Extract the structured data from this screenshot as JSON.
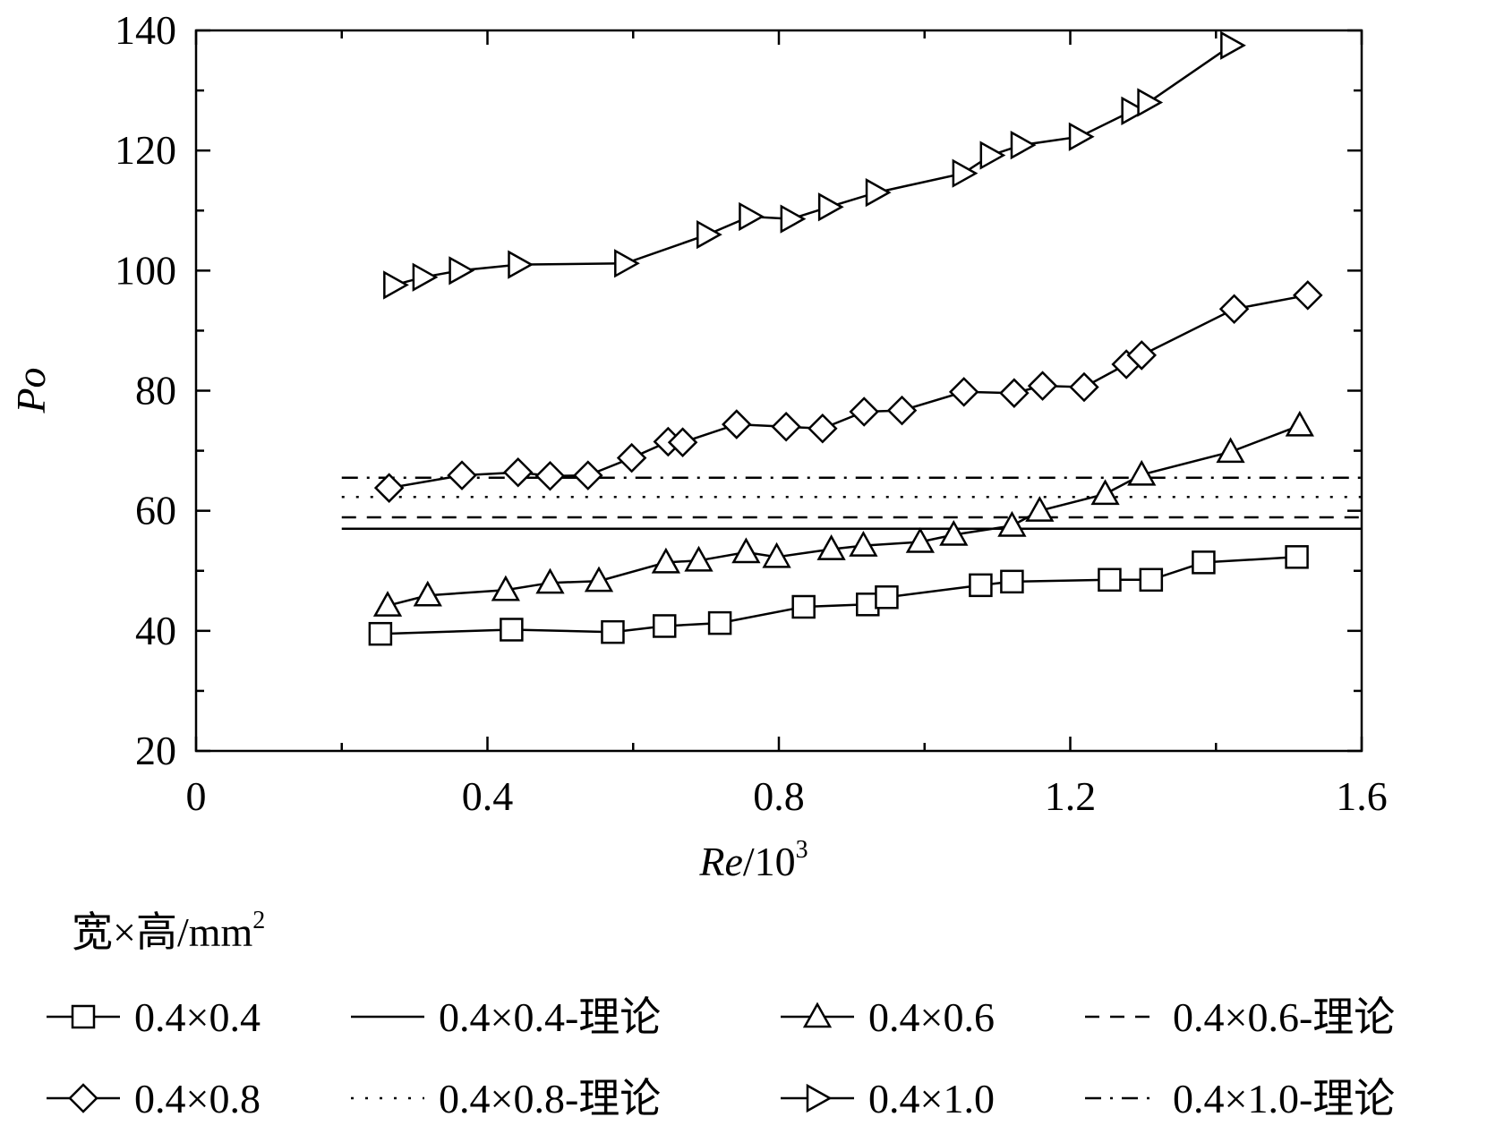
{
  "chart_data": {
    "type": "line",
    "title": "",
    "xlabel_italic": "Re",
    "xlabel_rest": "/10",
    "xlabel_sup": "3",
    "ylabel": "Po",
    "xlim": [
      0,
      1.6
    ],
    "ylim": [
      20,
      140
    ],
    "xticks": [
      0,
      0.4,
      0.8,
      1.2,
      1.6
    ],
    "xtick_labels": [
      "0",
      "0.4",
      "0.8",
      "1.2",
      "1.6"
    ],
    "yticks": [
      20,
      40,
      60,
      80,
      100,
      120,
      140
    ],
    "ytick_labels": [
      "20",
      "40",
      "60",
      "80",
      "100",
      "120",
      "140"
    ],
    "grid": false,
    "legend_title": "宽×高/mm",
    "legend_title_sup": "2",
    "legend_placement": "below",
    "series": [
      {
        "name": "0.4×0.4",
        "marker": "square",
        "x": [
          0.253,
          0.433,
          0.572,
          0.643,
          0.719,
          0.834,
          0.922,
          0.948,
          1.077,
          1.12,
          1.254,
          1.311,
          1.383,
          1.511
        ],
        "y": [
          39.5,
          40.2,
          39.8,
          40.8,
          41.3,
          44.0,
          44.4,
          45.6,
          47.6,
          48.2,
          48.5,
          48.5,
          51.4,
          52.3
        ]
      },
      {
        "name": "0.4×0.6",
        "marker": "triangle-up",
        "x": [
          0.263,
          0.318,
          0.425,
          0.486,
          0.553,
          0.645,
          0.69,
          0.755,
          0.797,
          0.872,
          0.916,
          0.994,
          1.04,
          1.12,
          1.158,
          1.248,
          1.298,
          1.42,
          1.515
        ],
        "y": [
          44.2,
          45.9,
          46.8,
          48.0,
          48.3,
          51.4,
          51.7,
          53.1,
          52.3,
          53.6,
          54.2,
          54.8,
          56.0,
          57.5,
          60.0,
          62.8,
          66.0,
          69.8,
          74.2
        ]
      },
      {
        "name": "0.4×0.8",
        "marker": "diamond",
        "x": [
          0.265,
          0.365,
          0.442,
          0.486,
          0.538,
          0.598,
          0.648,
          0.668,
          0.742,
          0.81,
          0.86,
          0.917,
          0.969,
          1.054,
          1.123,
          1.162,
          1.219,
          1.277,
          1.298,
          1.425,
          1.526
        ],
        "y": [
          63.8,
          65.9,
          66.4,
          65.8,
          65.9,
          68.8,
          71.5,
          71.4,
          74.4,
          74.0,
          73.7,
          76.5,
          76.7,
          79.8,
          79.6,
          80.8,
          80.6,
          84.4,
          85.9,
          93.6,
          95.9
        ]
      },
      {
        "name": "0.4×1.0",
        "marker": "triangle-right",
        "x": [
          0.272,
          0.312,
          0.362,
          0.443,
          0.589,
          0.702,
          0.76,
          0.817,
          0.869,
          0.934,
          1.053,
          1.091,
          1.133,
          1.213,
          1.285,
          1.307,
          1.421
        ],
        "y": [
          97.6,
          98.9,
          100.0,
          101.0,
          101.2,
          106.0,
          109.0,
          108.6,
          110.6,
          113.0,
          116.2,
          119.2,
          120.9,
          122.3,
          126.6,
          128.0,
          137.5
        ]
      }
    ],
    "theory": [
      {
        "name": "0.4×0.4-理论",
        "style": "solid",
        "y": 57.0,
        "x": [
          0.2,
          1.6
        ]
      },
      {
        "name": "0.4×0.6-理论",
        "style": "dashed",
        "y": 58.9,
        "x": [
          0.2,
          1.6
        ]
      },
      {
        "name": "0.4×0.8-理论",
        "style": "dotted",
        "y": 62.3,
        "x": [
          0.2,
          1.6
        ]
      },
      {
        "name": "0.4×1.0-理论",
        "style": "dashdot",
        "y": 65.5,
        "x": [
          0.2,
          1.6
        ]
      }
    ]
  }
}
